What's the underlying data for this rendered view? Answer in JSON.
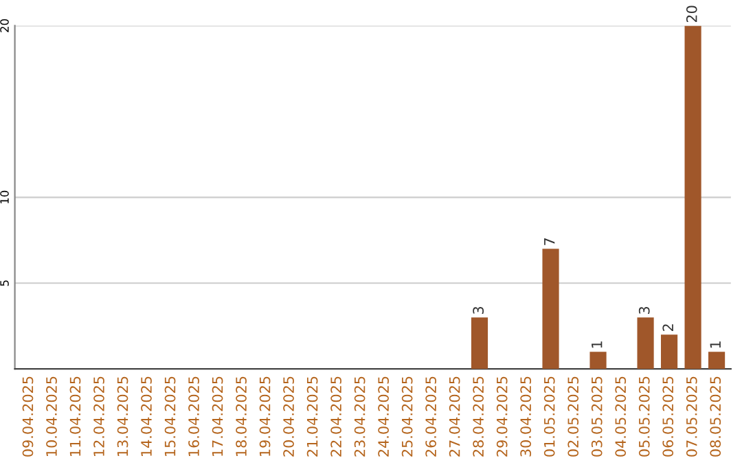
{
  "chart_data": {
    "type": "bar",
    "categories": [
      "09.04.2025",
      "10.04.2025",
      "11.04.2025",
      "12.04.2025",
      "13.04.2025",
      "14.04.2025",
      "15.04.2025",
      "16.04.2025",
      "17.04.2025",
      "18.04.2025",
      "19.04.2025",
      "20.04.2025",
      "21.04.2025",
      "22.04.2025",
      "23.04.2025",
      "24.04.2025",
      "25.04.2025",
      "26.04.2025",
      "27.04.2025",
      "28.04.2025",
      "29.04.2025",
      "30.04.2025",
      "01.05.2025",
      "02.05.2025",
      "03.05.2025",
      "04.05.2025",
      "05.05.2025",
      "06.05.2025",
      "07.05.2025",
      "08.05.2025"
    ],
    "values": [
      0,
      0,
      0,
      0,
      0,
      0,
      0,
      0,
      0,
      0,
      0,
      0,
      0,
      0,
      0,
      0,
      0,
      0,
      0,
      3,
      0,
      0,
      7,
      0,
      1,
      0,
      3,
      2,
      20,
      1
    ],
    "value_labels": [
      null,
      null,
      null,
      null,
      null,
      null,
      null,
      null,
      null,
      null,
      null,
      null,
      null,
      null,
      null,
      null,
      null,
      null,
      null,
      "3",
      null,
      null,
      "7",
      null,
      "1",
      null,
      "3",
      "2",
      "20",
      "1"
    ],
    "color": "#a0572a",
    "ylim": [
      0,
      20
    ],
    "yticks": [
      5,
      10,
      20
    ],
    "grid": "y"
  }
}
